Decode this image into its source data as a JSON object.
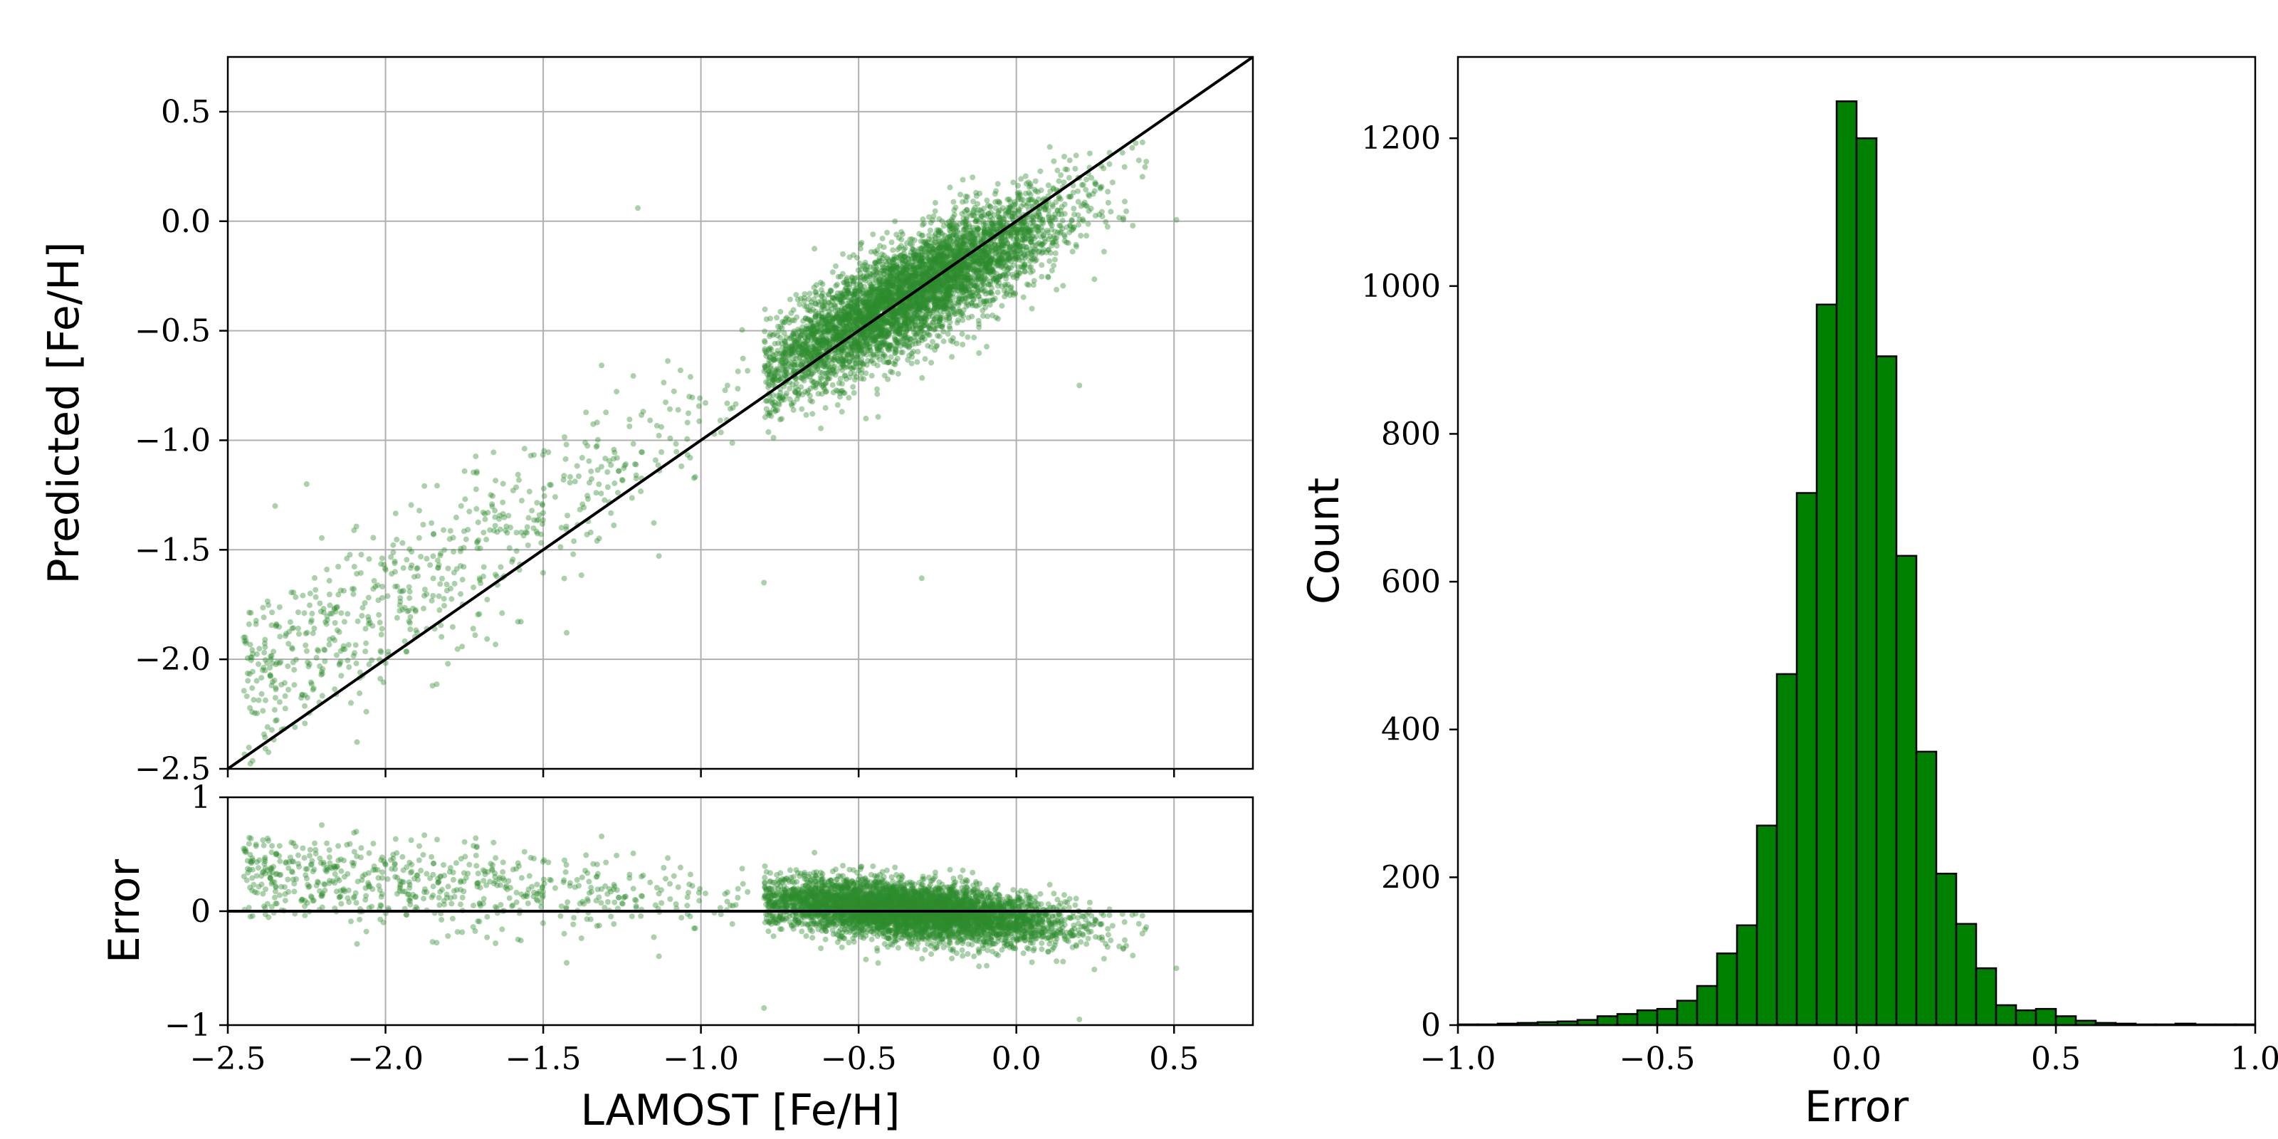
{
  "chart_data": [
    {
      "id": "scatter-main",
      "type": "scatter",
      "xlabel": "",
      "ylabel": "Predicted [Fe/H]",
      "xlim": [
        -2.5,
        0.75
      ],
      "ylim": [
        -2.5,
        0.75
      ],
      "xticks": [
        -2.5,
        -2.0,
        -1.5,
        -1.0,
        -0.5,
        0.0,
        0.5
      ],
      "yticks": [
        -2.5,
        -2.0,
        -1.5,
        -1.0,
        -0.5,
        0.0,
        0.5
      ],
      "ytick_labels": [
        "−2.5",
        "−2.0",
        "−1.5",
        "−1.0",
        "−0.5",
        "0.0",
        "0.5"
      ],
      "grid": true,
      "reference_line": {
        "type": "y=x"
      },
      "point_color": "#2e8b2e",
      "description_of_distribution": {
        "core": {
          "x_center": -0.35,
          "x_spread": 0.25,
          "slope": 0.75,
          "y_scatter": 0.12,
          "x_range": [
            -0.8,
            0.55
          ]
        },
        "tail": {
          "x_range": [
            -2.45,
            -0.8
          ],
          "y_scatter": 0.18
        }
      },
      "outliers": [
        {
          "x": -1.2,
          "y": 0.06
        },
        {
          "x": -0.3,
          "y": -1.63
        },
        {
          "x": -0.8,
          "y": -1.65
        },
        {
          "x": -2.35,
          "y": -1.3
        },
        {
          "x": -2.45,
          "y": -1.9
        },
        {
          "x": -2.25,
          "y": -1.2
        },
        {
          "x": 0.2,
          "y": -0.75
        },
        {
          "x": -0.55,
          "y": -0.15
        }
      ]
    },
    {
      "id": "residuals",
      "type": "scatter",
      "xlabel": "LAMOST [Fe/H]",
      "ylabel": "Error",
      "xlim": [
        -2.5,
        0.75
      ],
      "ylim": [
        -1,
        1
      ],
      "xticks": [
        -2.5,
        -2.0,
        -1.5,
        -1.0,
        -0.5,
        0.0,
        0.5
      ],
      "xtick_labels": [
        "−2.5",
        "−2.0",
        "−1.5",
        "−1.0",
        "−0.5",
        "0.0",
        "0.5"
      ],
      "yticks": [
        -1,
        0,
        1
      ],
      "ytick_labels": [
        "−1",
        "0",
        "1"
      ],
      "grid": true,
      "reference_line": {
        "type": "y=0"
      },
      "point_color": "#2e8b2e"
    },
    {
      "id": "histogram",
      "type": "bar",
      "xlabel": "Error",
      "ylabel": "Count",
      "xlim": [
        -1.0,
        1.0
      ],
      "ylim": [
        0,
        1310
      ],
      "xticks": [
        -1.0,
        -0.5,
        0.0,
        0.5,
        1.0
      ],
      "xtick_labels": [
        "−1.0",
        "−0.5",
        "0.0",
        "0.5",
        "1.0"
      ],
      "yticks": [
        0,
        200,
        400,
        600,
        800,
        1000,
        1200
      ],
      "ytick_labels": [
        "0",
        "200",
        "400",
        "600",
        "800",
        "1000",
        "1200"
      ],
      "grid": false,
      "bar_color": "#008000",
      "bin_edges": [
        -1.0,
        -0.95,
        -0.9,
        -0.85,
        -0.8,
        -0.75,
        -0.7,
        -0.65,
        -0.6,
        -0.55,
        -0.5,
        -0.45,
        -0.4,
        -0.35,
        -0.3,
        -0.25,
        -0.2,
        -0.15,
        -0.1,
        -0.05,
        0.0,
        0.05,
        0.1,
        0.15,
        0.2,
        0.25,
        0.3,
        0.35,
        0.4,
        0.45,
        0.5,
        0.55,
        0.6,
        0.65,
        0.7,
        0.75,
        0.8,
        0.85,
        0.9,
        0.95,
        1.0
      ],
      "values": [
        1,
        1,
        2,
        3,
        4,
        5,
        7,
        12,
        15,
        20,
        22,
        33,
        53,
        97,
        135,
        270,
        475,
        720,
        975,
        1250,
        1200,
        905,
        635,
        370,
        205,
        137,
        77,
        27,
        20,
        22,
        12,
        6,
        3,
        2,
        1,
        1,
        2,
        1,
        1,
        1
      ]
    }
  ]
}
